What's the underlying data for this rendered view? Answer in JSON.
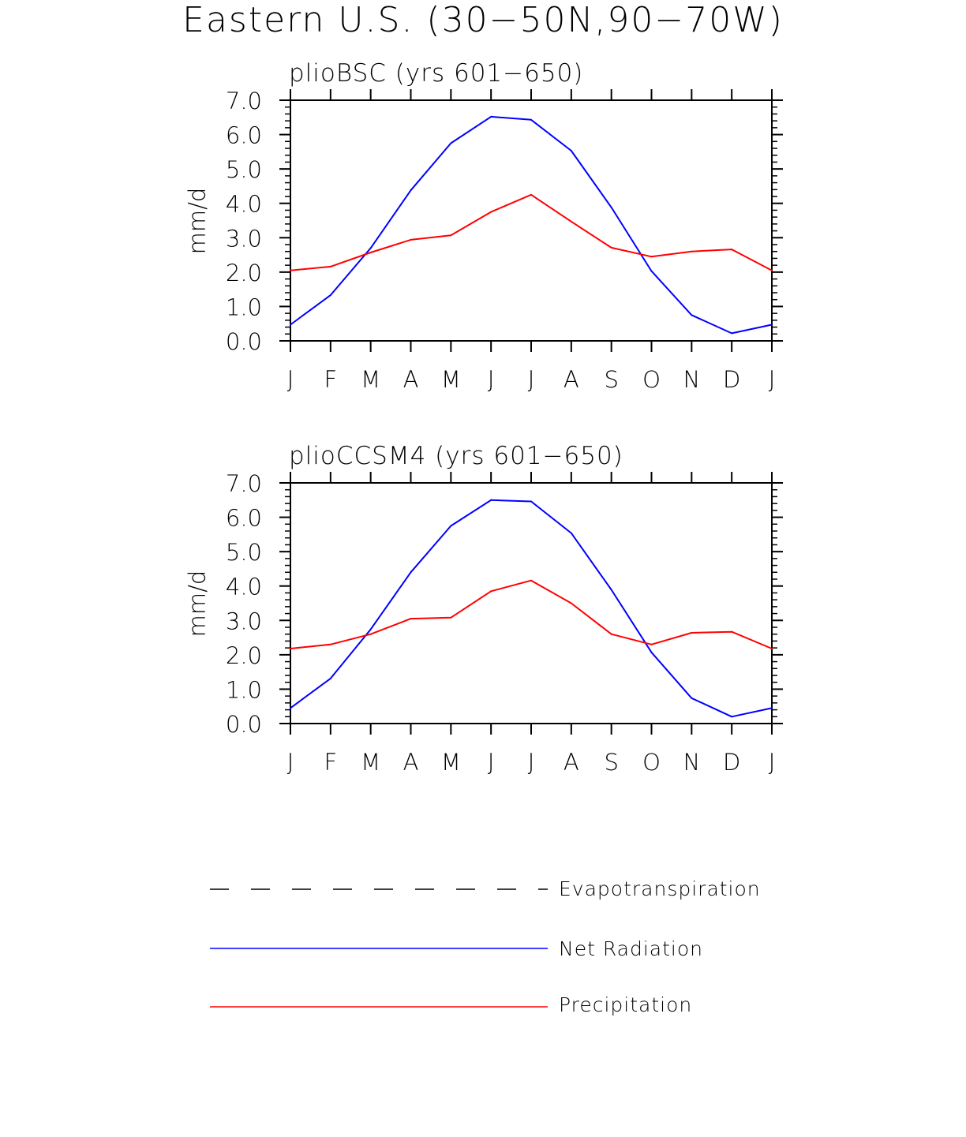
{
  "figure_title": "Eastern U.S. (30−50N,90−70W)",
  "colors": {
    "net_radiation": "#0000ff",
    "precipitation": "#ff0000",
    "evapotranspiration": "#000000",
    "axes": "#000000"
  },
  "chart_data": [
    {
      "type": "line",
      "title": "plioBSC (yrs 601−650)",
      "xlabel": "",
      "ylabel": "mm/d",
      "ylim": [
        0,
        7
      ],
      "yticks": [
        "0.0",
        "1.0",
        "2.0",
        "3.0",
        "4.0",
        "5.0",
        "6.0",
        "7.0"
      ],
      "categories": [
        "J",
        "F",
        "M",
        "A",
        "M",
        "J",
        "J",
        "A",
        "S",
        "O",
        "N",
        "D",
        "J"
      ],
      "series": [
        {
          "name": "Net Radiation",
          "values": [
            0.47,
            1.33,
            2.7,
            4.38,
            5.75,
            6.52,
            6.43,
            5.53,
            3.88,
            2.03,
            0.75,
            0.22,
            0.47
          ]
        },
        {
          "name": "Precipitation",
          "values": [
            2.05,
            2.16,
            2.57,
            2.94,
            3.07,
            3.75,
            4.25,
            3.47,
            2.71,
            2.45,
            2.6,
            2.66,
            2.05
          ]
        }
      ]
    },
    {
      "type": "line",
      "title": "plioCCSM4 (yrs 601−650)",
      "xlabel": "",
      "ylabel": "mm/d",
      "ylim": [
        0,
        7
      ],
      "yticks": [
        "0.0",
        "1.0",
        "2.0",
        "3.0",
        "4.0",
        "5.0",
        "6.0",
        "7.0"
      ],
      "categories": [
        "J",
        "F",
        "M",
        "A",
        "M",
        "J",
        "J",
        "A",
        "S",
        "O",
        "N",
        "D",
        "J"
      ],
      "series": [
        {
          "name": "Net Radiation",
          "values": [
            0.45,
            1.31,
            2.74,
            4.4,
            5.75,
            6.5,
            6.46,
            5.54,
            3.89,
            2.07,
            0.74,
            0.2,
            0.45
          ]
        },
        {
          "name": "Precipitation",
          "values": [
            2.18,
            2.3,
            2.6,
            3.05,
            3.08,
            3.85,
            4.16,
            3.5,
            2.6,
            2.3,
            2.64,
            2.67,
            2.18
          ]
        }
      ]
    }
  ],
  "legend": [
    {
      "label": "Evapotranspiration",
      "style": "dashed"
    },
    {
      "label": "Net Radiation",
      "style": "solid-blue"
    },
    {
      "label": "Precipitation",
      "style": "solid-red"
    }
  ]
}
